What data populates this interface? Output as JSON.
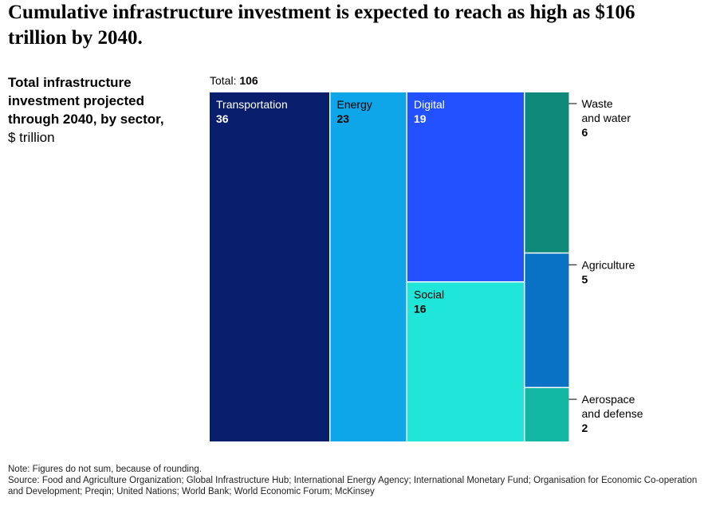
{
  "title": "Cumulative infrastructure investment is expected to reach as high as $106 trillion by 2040.",
  "subtitle_bold": "Total infrastructure investment projected through 2040, by sector,",
  "subtitle_unit": "$ trillion",
  "total_label": "Total:",
  "total_value": "106",
  "chart_data": {
    "type": "treemap",
    "total": 106,
    "unit": "$ trillion",
    "sectors": [
      {
        "name": "Transportation",
        "value": 36,
        "color": "#0a1e6e"
      },
      {
        "name": "Energy",
        "value": 23,
        "color": "#0ea5e9"
      },
      {
        "name": "Digital",
        "value": 19,
        "color": "#2251ff"
      },
      {
        "name": "Social",
        "value": 16,
        "color": "#1fe6d9"
      },
      {
        "name": "Waste and water",
        "value": 6,
        "color": "#0f8a7a"
      },
      {
        "name": "Agriculture",
        "value": 5,
        "color": "#0a72c4"
      },
      {
        "name": "Aerospace and defense",
        "value": 2,
        "color": "#12b8a4"
      }
    ]
  },
  "notes": {
    "note": "Note: Figures do not sum, because of rounding.",
    "source": "Source: Food and Agriculture Organization; Global Infrastructure Hub; International Energy Agency; International Monetary Fund; Organisation for Economic Co-operation and Development; Preqin; United Nations; World Bank; World Economic Forum; McKinsey"
  }
}
